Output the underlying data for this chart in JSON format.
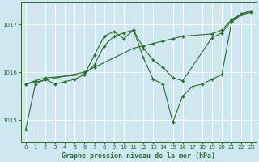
{
  "title": "Graphe pression niveau de la mer (hPa)",
  "background_color": "#cde8f0",
  "grid_color": "#ffffff",
  "line_color": "#2d6a2d",
  "xlim": [
    -0.5,
    23.5
  ],
  "ylim": [
    1014.55,
    1017.45
  ],
  "yticks": [
    1015,
    1016,
    1017
  ],
  "xticks": [
    0,
    1,
    2,
    3,
    4,
    5,
    6,
    7,
    8,
    9,
    10,
    11,
    12,
    13,
    14,
    15,
    16,
    17,
    18,
    19,
    20,
    21,
    22,
    23
  ],
  "series1": [
    [
      0,
      1014.8
    ],
    [
      1,
      1015.75
    ],
    [
      2,
      1015.85
    ],
    [
      3,
      1015.75
    ],
    [
      4,
      1015.8
    ],
    [
      5,
      1015.85
    ],
    [
      6,
      1015.95
    ],
    [
      7,
      1016.35
    ],
    [
      8,
      1016.75
    ],
    [
      9,
      1016.85
    ],
    [
      10,
      1016.7
    ],
    [
      11,
      1016.88
    ],
    [
      12,
      1016.3
    ],
    [
      13,
      1015.85
    ],
    [
      14,
      1015.75
    ],
    [
      15,
      1014.95
    ],
    [
      16,
      1015.5
    ],
    [
      17,
      1015.7
    ],
    [
      18,
      1015.75
    ],
    [
      19,
      1015.85
    ],
    [
      20,
      1015.95
    ],
    [
      21,
      1017.05
    ],
    [
      22,
      1017.2
    ],
    [
      23,
      1017.25
    ]
  ],
  "series2": [
    [
      0,
      1015.75
    ],
    [
      1,
      1015.82
    ],
    [
      2,
      1015.88
    ],
    [
      6,
      1015.95
    ],
    [
      7,
      1016.15
    ],
    [
      8,
      1016.55
    ],
    [
      9,
      1016.75
    ],
    [
      10,
      1016.82
    ],
    [
      11,
      1016.88
    ],
    [
      12,
      1016.5
    ],
    [
      13,
      1016.25
    ],
    [
      14,
      1016.1
    ],
    [
      15,
      1015.88
    ],
    [
      16,
      1015.82
    ],
    [
      19,
      1016.72
    ],
    [
      20,
      1016.82
    ],
    [
      21,
      1017.08
    ],
    [
      22,
      1017.22
    ],
    [
      23,
      1017.28
    ]
  ],
  "series3": [
    [
      0,
      1015.75
    ],
    [
      6,
      1016.0
    ],
    [
      7,
      1016.1
    ],
    [
      11,
      1016.5
    ],
    [
      12,
      1016.55
    ],
    [
      13,
      1016.6
    ],
    [
      14,
      1016.65
    ],
    [
      15,
      1016.7
    ],
    [
      16,
      1016.75
    ],
    [
      19,
      1016.8
    ],
    [
      20,
      1016.88
    ],
    [
      21,
      1017.1
    ],
    [
      22,
      1017.22
    ],
    [
      23,
      1017.28
    ]
  ]
}
